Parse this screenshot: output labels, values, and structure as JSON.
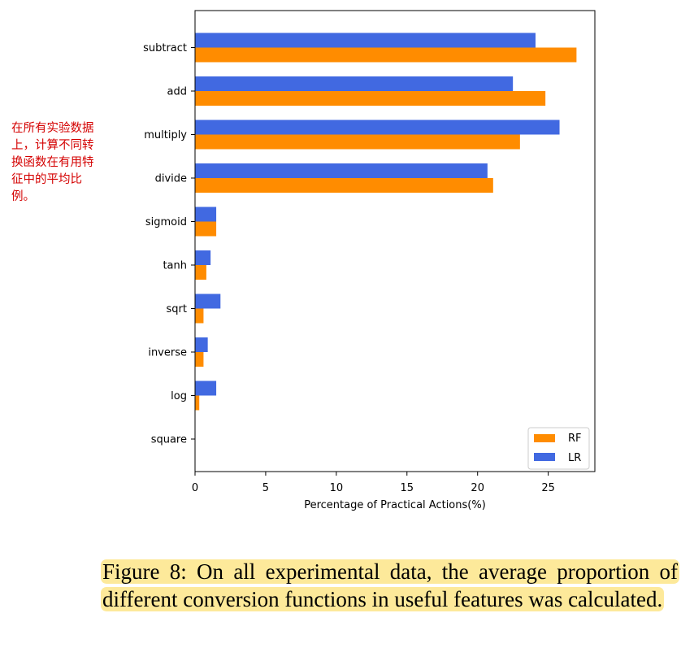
{
  "annotation": "在所有实验数据上，计算不同转换函数在有用特征中的平均比例。",
  "caption": "Figure 8: On all experimental data, the average proportion of different conversion functions in useful features was calculated.",
  "colors": {
    "RF": "#ff8c00",
    "LR": "#4169e1",
    "annotation": "#d40000",
    "highlight": "#fde99a"
  },
  "chart_data": {
    "type": "bar",
    "orientation": "horizontal",
    "categories": [
      "subtract",
      "add",
      "multiply",
      "divide",
      "sigmoid",
      "tanh",
      "sqrt",
      "inverse",
      "log",
      "square"
    ],
    "series": [
      {
        "name": "LR",
        "color": "#4169e1",
        "values": [
          24.1,
          22.5,
          25.8,
          20.7,
          1.5,
          1.1,
          1.8,
          0.9,
          1.5,
          0.0
        ]
      },
      {
        "name": "RF",
        "color": "#ff8c00",
        "values": [
          27.0,
          24.8,
          23.0,
          21.1,
          1.5,
          0.8,
          0.6,
          0.6,
          0.3,
          0.0
        ]
      }
    ],
    "xlabel": "Percentage of Practical Actions(%)",
    "ylabel": "",
    "title": "",
    "xticks": [
      "0",
      "5",
      "10",
      "15",
      "20",
      "25"
    ],
    "xlim": [
      0,
      28.3
    ],
    "grid": false,
    "legend": {
      "position": "bottom-right",
      "entries": [
        "RF",
        "LR"
      ]
    }
  }
}
